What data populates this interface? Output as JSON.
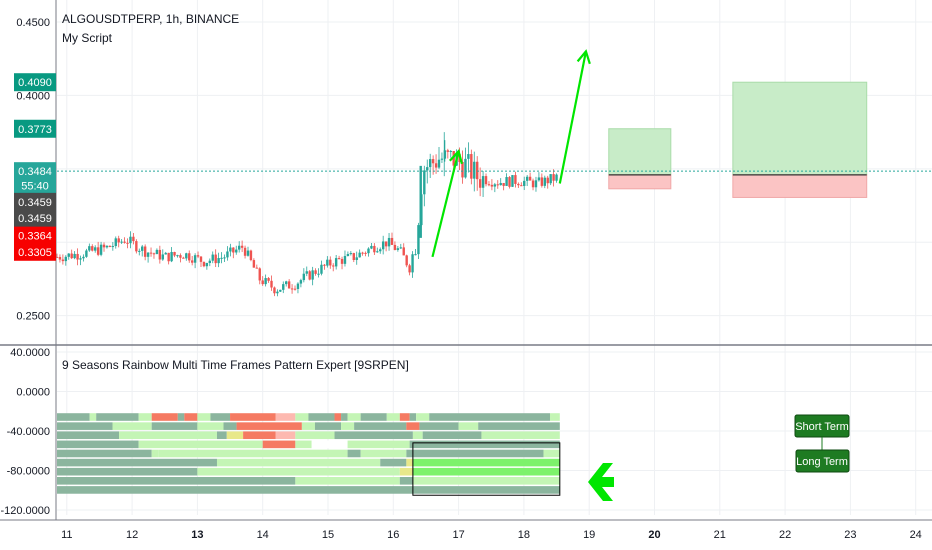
{
  "chart": {
    "symbol_title": "ALGOUSDTPERP, 1h, BINANCE",
    "script_name": "My Script",
    "indicator_title": "9 Seasons Rainbow Multi Time Frames Pattern Expert [9SRPEN]",
    "short_term_label": "Short Term",
    "long_term_label": "Long Term"
  },
  "chart_data": [
    {
      "type": "candlestick",
      "title": "ALGOUSDTPERP, 1h, BINANCE",
      "subtitle": "My Script",
      "y_ticks": [
        "0.4500",
        "0.4000",
        "0.2500"
      ],
      "x_ticks": [
        "11",
        "12",
        "13",
        "14",
        "15",
        "16",
        "17",
        "18",
        "19",
        "20",
        "21",
        "22",
        "23",
        "24"
      ],
      "bold_x_ticks": [
        "13",
        "20"
      ],
      "ylim": [
        0.23,
        0.465
      ],
      "xlim": [
        10.85,
        25.0
      ],
      "price_tags": [
        {
          "label": "0.4090",
          "value": 0.409,
          "color": "#089981"
        },
        {
          "label": "0.3773",
          "value": 0.3773,
          "color": "#089981"
        },
        {
          "label": "0.3484",
          "value": 0.3484,
          "color": "#26a69a"
        },
        {
          "label": "55:40",
          "value": 0.3385,
          "color": "#26a69a"
        },
        {
          "label": "0.3459",
          "value": 0.3275,
          "color": "#4a4a4a"
        },
        {
          "label": "0.3459",
          "value": 0.3165,
          "color": "#4a4a4a"
        },
        {
          "label": "0.3364",
          "value": 0.3045,
          "color": "#f70000"
        },
        {
          "label": "0.3305",
          "value": 0.2935,
          "color": "#f70000"
        }
      ],
      "last_price": 0.3484,
      "price_path": [
        [
          10.85,
          0.29
        ],
        [
          11.2,
          0.292
        ],
        [
          11.6,
          0.296
        ],
        [
          11.9,
          0.302
        ],
        [
          12.2,
          0.294
        ],
        [
          12.5,
          0.29
        ],
        [
          12.8,
          0.292
        ],
        [
          13.1,
          0.287
        ],
        [
          13.4,
          0.29
        ],
        [
          13.7,
          0.297
        ],
        [
          13.95,
          0.275
        ],
        [
          14.2,
          0.268
        ],
        [
          14.5,
          0.272
        ],
        [
          14.8,
          0.28
        ],
        [
          15.1,
          0.287
        ],
        [
          15.4,
          0.29
        ],
        [
          15.7,
          0.297
        ],
        [
          15.9,
          0.3
        ],
        [
          16.1,
          0.294
        ],
        [
          16.25,
          0.283
        ],
        [
          16.35,
          0.302
        ],
        [
          16.45,
          0.35
        ],
        [
          16.7,
          0.357
        ],
        [
          16.9,
          0.357
        ],
        [
          17.1,
          0.353
        ],
        [
          17.3,
          0.344
        ],
        [
          17.6,
          0.341
        ],
        [
          17.9,
          0.342
        ],
        [
          18.2,
          0.34
        ],
        [
          18.5,
          0.344
        ]
      ],
      "annotations": [
        {
          "type": "arrow",
          "color": "#00e600",
          "from": [
            16.6,
            0.29
          ],
          "to": [
            17.0,
            0.362
          ]
        },
        {
          "type": "arrow",
          "color": "#00e600",
          "from": [
            18.55,
            0.34
          ],
          "to": [
            18.95,
            0.43
          ]
        },
        {
          "type": "position",
          "x0": 19.3,
          "x1": 20.25,
          "entry": 0.3459,
          "target": 0.3773,
          "stop": 0.3364
        },
        {
          "type": "position",
          "x0": 21.2,
          "x1": 23.25,
          "entry": 0.3459,
          "target": 0.409,
          "stop": 0.3305
        }
      ]
    },
    {
      "type": "heatmap",
      "title": "9 Seasons Rainbow Multi Time Frames Pattern Expert [9SRPEN]",
      "y_ticks": [
        "40.0000",
        "0.0000",
        "-40.0000",
        "-80.0000",
        "-120.0000"
      ],
      "ylim": [
        -125,
        45
      ],
      "rows": 9,
      "x_range": [
        10.85,
        18.55
      ],
      "legend": [
        "Short Term",
        "Long Term"
      ],
      "segments": [
        [
          [
            10.85,
            11.35,
            "#8bb59e"
          ],
          [
            11.35,
            11.45,
            "#c4f5b5"
          ],
          [
            11.45,
            12.1,
            "#8bb59e"
          ],
          [
            12.1,
            12.3,
            "#c4f5b5"
          ],
          [
            12.3,
            12.7,
            "#f57a62"
          ],
          [
            12.7,
            12.8,
            "#8bb59e"
          ],
          [
            12.8,
            13.0,
            "#f57a62"
          ],
          [
            13.0,
            13.2,
            "#c4f5b5"
          ],
          [
            13.2,
            13.5,
            "#8bb59e"
          ],
          [
            13.5,
            14.2,
            "#f57a62"
          ],
          [
            14.2,
            14.5,
            "#fdb9b0"
          ],
          [
            14.5,
            14.7,
            "#c4f5b5"
          ],
          [
            14.7,
            15.1,
            "#8bb59e"
          ],
          [
            15.1,
            15.2,
            "#f57a62"
          ],
          [
            15.2,
            15.3,
            "#8bb59e"
          ],
          [
            15.3,
            15.5,
            "#c4f5b5"
          ],
          [
            15.5,
            15.9,
            "#8bb59e"
          ],
          [
            15.9,
            16.1,
            "#c4f5b5"
          ],
          [
            16.1,
            16.25,
            "#f57a62"
          ],
          [
            16.25,
            16.35,
            "#8bb59e"
          ],
          [
            16.35,
            16.55,
            "#c4f5b5"
          ],
          [
            16.55,
            18.4,
            "#8bb59e"
          ],
          [
            18.4,
            18.55,
            "#c4f5b5"
          ]
        ],
        [
          [
            10.85,
            11.7,
            "#8bb59e"
          ],
          [
            11.7,
            12.3,
            "#c4f5b5"
          ],
          [
            12.3,
            13.0,
            "#8bb59e"
          ],
          [
            13.0,
            13.4,
            "#c4f5b5"
          ],
          [
            13.4,
            13.6,
            "#8bb59e"
          ],
          [
            13.6,
            14.6,
            "#f57a62"
          ],
          [
            14.6,
            14.8,
            "#c4f5b5"
          ],
          [
            14.8,
            15.2,
            "#8bb59e"
          ],
          [
            15.2,
            15.4,
            "#c4f5b5"
          ],
          [
            15.4,
            16.2,
            "#8bb59e"
          ],
          [
            16.2,
            16.4,
            "#f57a62"
          ],
          [
            16.4,
            17.0,
            "#8bb59e"
          ],
          [
            17.0,
            17.3,
            "#c4f5b5"
          ],
          [
            17.3,
            18.55,
            "#8bb59e"
          ]
        ],
        [
          [
            10.85,
            11.8,
            "#8bb59e"
          ],
          [
            11.8,
            13.3,
            "#c4f5b5"
          ],
          [
            13.3,
            13.45,
            "#8bb59e"
          ],
          [
            13.45,
            13.7,
            "#e8e88a"
          ],
          [
            13.7,
            14.2,
            "#f57a62"
          ],
          [
            14.2,
            14.5,
            "#fdb9b0"
          ],
          [
            14.5,
            15.1,
            "#c4f5b5"
          ],
          [
            15.1,
            16.3,
            "#8bb59e"
          ],
          [
            16.3,
            16.45,
            "#c4f5b5"
          ],
          [
            16.45,
            17.35,
            "#8bb59e"
          ],
          [
            17.35,
            18.55,
            "#c4f5b5"
          ]
        ],
        [
          [
            10.85,
            12.1,
            "#8bb59e"
          ],
          [
            12.1,
            14.0,
            "#c4f5b5"
          ],
          [
            14.0,
            14.5,
            "#f57a62"
          ],
          [
            14.5,
            14.75,
            "#c4f5b5"
          ],
          [
            14.75,
            15.3,
            "#ffffff"
          ],
          [
            15.3,
            16.25,
            "#c4f5b5"
          ],
          [
            16.25,
            18.55,
            "#8bb59e"
          ]
        ],
        [
          [
            10.85,
            12.3,
            "#8bb59e"
          ],
          [
            12.3,
            12.4,
            "#c4f5b5"
          ],
          [
            12.4,
            15.3,
            "#c4f5b5"
          ],
          [
            15.3,
            15.5,
            "#8bb59e"
          ],
          [
            15.5,
            16.2,
            "#c4f5b5"
          ],
          [
            16.2,
            18.3,
            "#8bb59e"
          ],
          [
            18.3,
            18.55,
            "#c4f5b5"
          ]
        ],
        [
          [
            10.85,
            13.3,
            "#8bb59e"
          ],
          [
            13.3,
            13.4,
            "#c4f5b5"
          ],
          [
            13.4,
            15.8,
            "#c4f5b5"
          ],
          [
            15.8,
            16.2,
            "#8bb59e"
          ],
          [
            16.2,
            16.3,
            "#e8e88a"
          ],
          [
            16.3,
            18.55,
            "#7df26b"
          ]
        ],
        [
          [
            10.85,
            13.0,
            "#8bb59e"
          ],
          [
            13.0,
            16.1,
            "#c4f5b5"
          ],
          [
            16.1,
            16.3,
            "#e8e88a"
          ],
          [
            16.3,
            18.55,
            "#7df26b"
          ]
        ],
        [
          [
            10.85,
            14.5,
            "#8bb59e"
          ],
          [
            14.5,
            16.1,
            "#c4f5b5"
          ],
          [
            16.1,
            16.3,
            "#8bb59e"
          ],
          [
            16.3,
            18.55,
            "#c4f5b5"
          ]
        ],
        [
          [
            10.85,
            18.55,
            "#8bb59e"
          ]
        ]
      ],
      "highlight_box": {
        "x0": 16.3,
        "x1": 18.55,
        "row0": 0,
        "row1": 9,
        "top_value": -52
      }
    }
  ],
  "colors": {
    "up": "#26a69a",
    "down": "#ef5350",
    "arrow": "#00e600",
    "target_zone": "#c8ecc8",
    "stop_zone": "#fbc4c4",
    "label_bg": "#1e7b22"
  }
}
